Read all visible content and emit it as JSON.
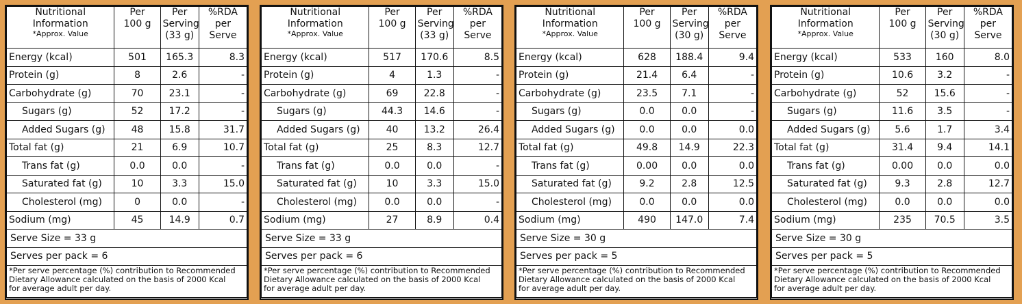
{
  "header": {
    "label_line1": "Nutritional",
    "label_line2": "Information",
    "approx": "*Approx. Value",
    "per100_line1": "Per",
    "per100_line2": "100 g",
    "serving_line1": "Per",
    "serving_line2": "Serving",
    "rda_line1": "%RDA",
    "rda_line2": "per",
    "rda_line3": "Serve"
  },
  "nutrients": [
    {
      "label": "Energy (kcal)",
      "indent": false
    },
    {
      "label": "Protein (g)",
      "indent": false
    },
    {
      "label": "Carbohydrate (g)",
      "indent": false
    },
    {
      "label": "Sugars (g)",
      "indent": true
    },
    {
      "label": "Added Sugars (g)",
      "indent": true
    },
    {
      "label": "Total fat (g)",
      "indent": false
    },
    {
      "label": "Trans fat (g)",
      "indent": true
    },
    {
      "label": "Saturated fat (g)",
      "indent": true
    },
    {
      "label": "Cholesterol (mg)",
      "indent": true
    },
    {
      "label": "Sodium (mg)",
      "indent": false
    }
  ],
  "footnote": {
    "line1": "*Per serve percentage (%) contribution to Recommended",
    "line2": "Dietary Allowance calculated on the basis of 2000 Kcal",
    "line3": "for average adult per day."
  },
  "panels": [
    {
      "serving_size": "(33 g)",
      "rows": [
        {
          "per100": "501",
          "serving": "165.3",
          "rda": "8.3"
        },
        {
          "per100": "8",
          "serving": "2.6",
          "rda": "-"
        },
        {
          "per100": "70",
          "serving": "23.1",
          "rda": "-"
        },
        {
          "per100": "52",
          "serving": "17.2",
          "rda": "-"
        },
        {
          "per100": "48",
          "serving": "15.8",
          "rda": "31.7"
        },
        {
          "per100": "21",
          "serving": "6.9",
          "rda": "10.7"
        },
        {
          "per100": "0.0",
          "serving": "0.0",
          "rda": "-"
        },
        {
          "per100": "10",
          "serving": "3.3",
          "rda": "15.0"
        },
        {
          "per100": "0",
          "serving": "0.0",
          "rda": "-"
        },
        {
          "per100": "45",
          "serving": "14.9",
          "rda": "0.7"
        }
      ],
      "serve_size_text": "Serve Size = 33 g",
      "serves_per_pack_text": "Serves per pack = 6"
    },
    {
      "serving_size": "(33 g)",
      "rows": [
        {
          "per100": "517",
          "serving": "170.6",
          "rda": "8.5"
        },
        {
          "per100": "4",
          "serving": "1.3",
          "rda": "-"
        },
        {
          "per100": "69",
          "serving": "22.8",
          "rda": "-"
        },
        {
          "per100": "44.3",
          "serving": "14.6",
          "rda": "-"
        },
        {
          "per100": "40",
          "serving": "13.2",
          "rda": "26.4"
        },
        {
          "per100": "25",
          "serving": "8.3",
          "rda": "12.7"
        },
        {
          "per100": "0.0",
          "serving": "0.0",
          "rda": "-"
        },
        {
          "per100": "10",
          "serving": "3.3",
          "rda": "15.0"
        },
        {
          "per100": "0.0",
          "serving": "0.0",
          "rda": "-"
        },
        {
          "per100": "27",
          "serving": "8.9",
          "rda": "0.4"
        }
      ],
      "serve_size_text": "Serve Size = 33 g",
      "serves_per_pack_text": "Serves per pack = 6"
    },
    {
      "serving_size": "(30 g)",
      "rows": [
        {
          "per100": "628",
          "serving": "188.4",
          "rda": "9.4"
        },
        {
          "per100": "21.4",
          "serving": "6.4",
          "rda": "-"
        },
        {
          "per100": "23.5",
          "serving": "7.1",
          "rda": "-"
        },
        {
          "per100": "0.0",
          "serving": "0.0",
          "rda": "-"
        },
        {
          "per100": "0.0",
          "serving": "0.0",
          "rda": "0.0"
        },
        {
          "per100": "49.8",
          "serving": "14.9",
          "rda": "22.3"
        },
        {
          "per100": "0.00",
          "serving": "0.0",
          "rda": "0.0"
        },
        {
          "per100": "9.2",
          "serving": "2.8",
          "rda": "12.5"
        },
        {
          "per100": "0.0",
          "serving": "0.0",
          "rda": "0.0"
        },
        {
          "per100": "490",
          "serving": "147.0",
          "rda": "7.4"
        }
      ],
      "serve_size_text": "Serve Size = 30 g",
      "serves_per_pack_text": "Serves per pack = 5"
    },
    {
      "serving_size": "(30 g)",
      "rows": [
        {
          "per100": "533",
          "serving": "160",
          "rda": "8.0"
        },
        {
          "per100": "10.6",
          "serving": "3.2",
          "rda": "-"
        },
        {
          "per100": "52",
          "serving": "15.6",
          "rda": "-"
        },
        {
          "per100": "11.6",
          "serving": "3.5",
          "rda": "-"
        },
        {
          "per100": "5.6",
          "serving": "1.7",
          "rda": "3.4"
        },
        {
          "per100": "31.4",
          "serving": "9.4",
          "rda": "14.1"
        },
        {
          "per100": "0.00",
          "serving": "0.0",
          "rda": "0.0"
        },
        {
          "per100": "9.3",
          "serving": "2.8",
          "rda": "12.7"
        },
        {
          "per100": "0.0",
          "serving": "0.0",
          "rda": "0.0"
        },
        {
          "per100": "235",
          "serving": "70.5",
          "rda": "3.5"
        }
      ],
      "serve_size_text": "Serve Size = 30 g",
      "serves_per_pack_text": "Serves per pack = 5"
    }
  ]
}
